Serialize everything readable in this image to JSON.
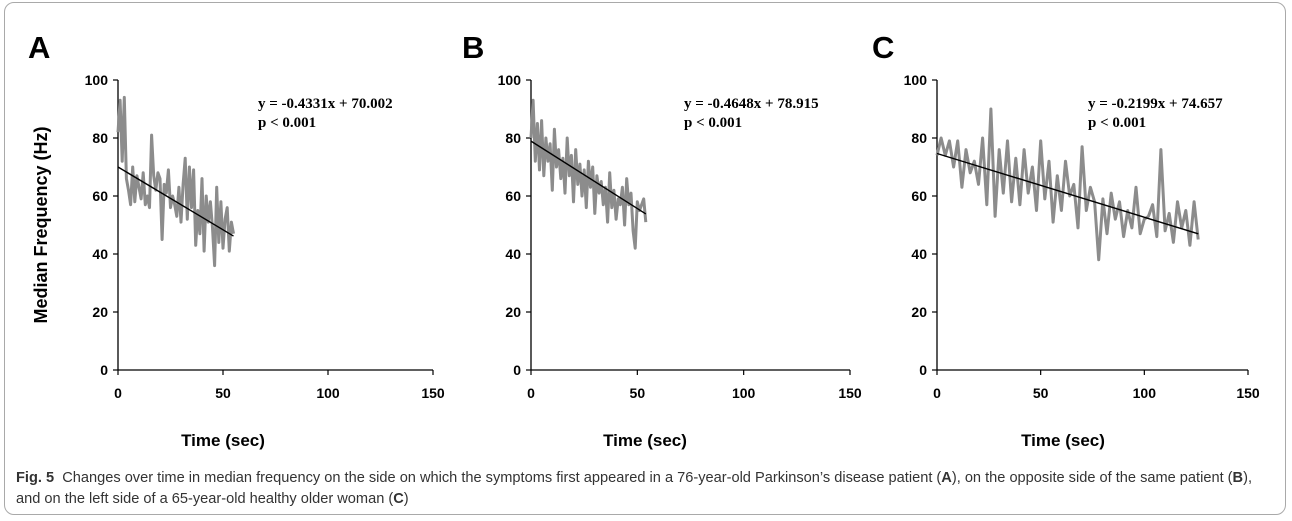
{
  "chart_data": [
    {
      "type": "line",
      "panel_label": "A",
      "ylabel": "Median Frequency (Hz)",
      "xlabel": "Time (sec)",
      "xlim": [
        0,
        150
      ],
      "ylim": [
        0,
        100
      ],
      "x_ticks": [
        "0",
        "50",
        "100",
        "150"
      ],
      "y_ticks": [
        "0",
        "20",
        "40",
        "60",
        "80",
        "100"
      ],
      "equation": "y = -0.4331x + 70.002",
      "p_value": "p < 0.001",
      "series": [
        {
          "x": [
            0,
            1,
            2,
            3,
            4,
            5,
            6,
            7,
            8,
            9,
            10,
            11,
            12,
            13,
            14,
            15,
            16,
            17,
            18,
            19,
            20,
            21,
            22,
            23,
            24,
            25,
            26,
            27,
            28,
            29,
            30,
            31,
            32,
            33,
            34,
            35,
            36,
            37,
            38,
            39,
            40,
            41,
            42,
            43,
            44,
            45,
            46,
            47,
            48,
            49,
            50,
            51,
            52,
            53,
            54,
            55
          ],
          "y": [
            82,
            93,
            72,
            94,
            66,
            62,
            57,
            70,
            58,
            67,
            63,
            59,
            68,
            57,
            60,
            56,
            81,
            67,
            62,
            68,
            66,
            45,
            64,
            61,
            69,
            56,
            60,
            57,
            53,
            63,
            51,
            64,
            73,
            52,
            70,
            56,
            69,
            43,
            55,
            47,
            66,
            41,
            60,
            51,
            58,
            49,
            36,
            63,
            44,
            58,
            42,
            52,
            56,
            41,
            51,
            47
          ]
        }
      ],
      "trend": {
        "slope": -0.4331,
        "intercept": 70.002,
        "x0": 0,
        "x1": 55
      }
    },
    {
      "type": "line",
      "panel_label": "B",
      "xlabel": "Time (sec)",
      "xlim": [
        0,
        150
      ],
      "ylim": [
        0,
        100
      ],
      "x_ticks": [
        "0",
        "50",
        "100",
        "150"
      ],
      "y_ticks": [
        "0",
        "20",
        "40",
        "60",
        "80",
        "100"
      ],
      "equation": "y = -0.4648x + 78.915",
      "p_value": "p < 0.001",
      "series": [
        {
          "x": [
            0,
            1,
            2,
            3,
            4,
            5,
            6,
            7,
            8,
            9,
            10,
            11,
            12,
            13,
            14,
            15,
            16,
            17,
            18,
            19,
            20,
            21,
            22,
            23,
            24,
            25,
            26,
            27,
            28,
            29,
            30,
            31,
            32,
            33,
            34,
            35,
            36,
            37,
            38,
            39,
            40,
            41,
            42,
            43,
            44,
            45,
            46,
            47,
            48,
            49,
            50,
            51,
            52,
            53,
            54
          ],
          "y": [
            80,
            93,
            72,
            85,
            69,
            86,
            67,
            80,
            72,
            78,
            62,
            83,
            70,
            76,
            66,
            73,
            61,
            80,
            67,
            74,
            58,
            76,
            64,
            71,
            60,
            69,
            56,
            72,
            63,
            70,
            54,
            67,
            61,
            65,
            57,
            63,
            51,
            68,
            56,
            62,
            52,
            59,
            57,
            63,
            50,
            66,
            57,
            61,
            48,
            42,
            58,
            55,
            57,
            59,
            51
          ]
        }
      ],
      "trend": {
        "slope": -0.4648,
        "intercept": 78.915,
        "x0": 0,
        "x1": 54
      }
    },
    {
      "type": "line",
      "panel_label": "C",
      "xlabel": "Time (sec)",
      "xlim": [
        0,
        150
      ],
      "ylim": [
        0,
        100
      ],
      "x_ticks": [
        "0",
        "50",
        "100",
        "150"
      ],
      "y_ticks": [
        "0",
        "20",
        "40",
        "60",
        "80",
        "100"
      ],
      "equation": "y = -0.2199x + 74.657",
      "p_value": "p < 0.001",
      "series": [
        {
          "x": [
            0,
            2,
            4,
            6,
            8,
            10,
            12,
            14,
            16,
            18,
            20,
            22,
            24,
            26,
            28,
            30,
            32,
            34,
            36,
            38,
            40,
            42,
            44,
            46,
            48,
            50,
            52,
            54,
            56,
            58,
            60,
            62,
            64,
            66,
            68,
            70,
            72,
            74,
            76,
            78,
            80,
            82,
            84,
            86,
            88,
            90,
            92,
            94,
            96,
            98,
            100,
            102,
            104,
            106,
            108,
            110,
            112,
            114,
            116,
            118,
            120,
            122,
            124,
            126
          ],
          "y": [
            74,
            80,
            74,
            79,
            70,
            79,
            63,
            76,
            68,
            72,
            64,
            80,
            57,
            90,
            53,
            76,
            61,
            79,
            58,
            73,
            57,
            76,
            61,
            70,
            55,
            79,
            59,
            72,
            51,
            67,
            55,
            72,
            60,
            64,
            49,
            77,
            55,
            63,
            58,
            38,
            59,
            47,
            61,
            52,
            58,
            46,
            55,
            49,
            63,
            47,
            52,
            53,
            57,
            46,
            76,
            48,
            54,
            44,
            58,
            49,
            55,
            43,
            58,
            45
          ]
        }
      ],
      "trend": {
        "slope": -0.2199,
        "intercept": 74.657,
        "x0": 0,
        "x1": 126
      }
    }
  ],
  "caption": {
    "fig_label": "Fig. 5",
    "text_1": "Changes over time in median frequency on the side on which the symptoms first appeared in a 76-year-old Parkinson’s disease patient (",
    "ref_a": "A",
    "text_2": "), on the opposite side of the same patient (",
    "ref_b": "B",
    "text_3": "), and on the left side of a 65-year-old healthy older woman (",
    "ref_c": "C",
    "text_4": ")"
  },
  "colors": {
    "data_line": "#8c8c8c",
    "trend_line": "#000000",
    "axis": "#000000",
    "caption_text": "#333333",
    "frame_border": "#a9a9a9"
  }
}
